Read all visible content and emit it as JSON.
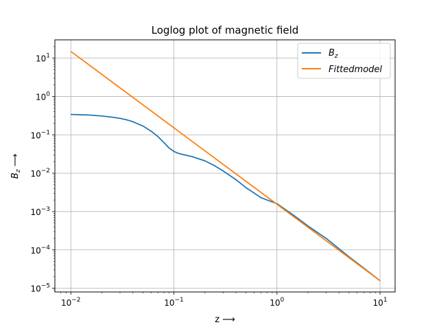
{
  "chart_data": {
    "type": "line",
    "title": "Loglog plot of magnetic field",
    "xlabel": "z ⟶",
    "ylabel": "B_z ⟶",
    "xscale": "log",
    "yscale": "log",
    "xlim": [
      0.007,
      14
    ],
    "ylim": [
      8e-06,
      30
    ],
    "grid": true,
    "legend_position": "top-right",
    "x_ticks": [
      {
        "value": 0.01,
        "base": "10",
        "exp": "−2"
      },
      {
        "value": 0.1,
        "base": "10",
        "exp": "−1"
      },
      {
        "value": 1,
        "base": "10",
        "exp": "0"
      },
      {
        "value": 10,
        "base": "10",
        "exp": "1"
      }
    ],
    "y_ticks": [
      {
        "value": 1e-05,
        "base": "10",
        "exp": "−5"
      },
      {
        "value": 0.0001,
        "base": "10",
        "exp": "−4"
      },
      {
        "value": 0.001,
        "base": "10",
        "exp": "−3"
      },
      {
        "value": 0.01,
        "base": "10",
        "exp": "−2"
      },
      {
        "value": 0.1,
        "base": "10",
        "exp": "−1"
      },
      {
        "value": 1,
        "base": "10",
        "exp": "0"
      },
      {
        "value": 10,
        "base": "10",
        "exp": "1"
      }
    ],
    "series": [
      {
        "name": "B_z",
        "color": "#1f77b4",
        "x": [
          0.01,
          0.015,
          0.02,
          0.025,
          0.03,
          0.035,
          0.04,
          0.05,
          0.06,
          0.07,
          0.08,
          0.09,
          0.1,
          0.11,
          0.12,
          0.15,
          0.2,
          0.25,
          0.3,
          0.4,
          0.5,
          0.7,
          1,
          1.5,
          2,
          3,
          5,
          7,
          10
        ],
        "y": [
          0.34,
          0.33,
          0.31,
          0.29,
          0.27,
          0.245,
          0.22,
          0.17,
          0.125,
          0.09,
          0.063,
          0.045,
          0.037,
          0.033,
          0.031,
          0.027,
          0.021,
          0.0155,
          0.0115,
          0.0068,
          0.0042,
          0.0023,
          0.0016,
          0.00075,
          0.00042,
          0.0002,
          6.6e-05,
          3.3e-05,
          1.57e-05
        ]
      },
      {
        "name": "Fittedmodel",
        "color": "#ff7f0e",
        "x": [
          0.01,
          10
        ],
        "y": [
          15,
          1.57e-05
        ]
      }
    ]
  }
}
